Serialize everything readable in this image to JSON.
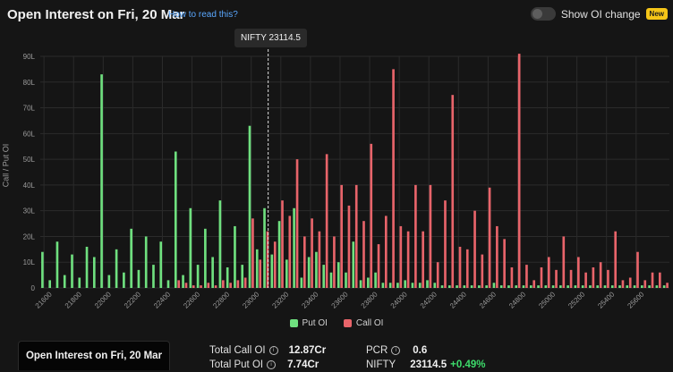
{
  "header": {
    "title": "Open Interest on Fri, 20 Mar",
    "how_to_read": "How to read this?",
    "toggle_label": "Show OI change",
    "new_badge": "New"
  },
  "spot_tooltip": "NIFTY 23114.5",
  "legend": {
    "put": "Put OI",
    "call": "Call OI"
  },
  "footer": {
    "button": "Open Interest on Fri, 20 Mar",
    "total_call_label": "Total Call OI",
    "total_call_value": "12.87Cr",
    "total_put_label": "Total Put OI",
    "total_put_value": "7.74Cr",
    "pcr_label": "PCR",
    "pcr_value": "0.6",
    "nifty_label": "NIFTY",
    "nifty_value": "23114.5",
    "nifty_change": "+0.49%"
  },
  "colors": {
    "put": "#6fe07f",
    "call": "#e8646a",
    "background": "#151515",
    "grid": "#2b2b2b"
  },
  "chart_data": {
    "type": "bar",
    "ylabel": "Call / Put OI",
    "ylim": [
      0,
      90
    ],
    "y_ticks": [
      "0",
      "10L",
      "20L",
      "30L",
      "40L",
      "50L",
      "60L",
      "70L",
      "80L",
      "90L"
    ],
    "x_ticks": [
      "21600",
      "21800",
      "22000",
      "22200",
      "22400",
      "22600",
      "22800",
      "23000",
      "23200",
      "23400",
      "23600",
      "23800",
      "24000",
      "24200",
      "24400",
      "24600",
      "24800",
      "25000",
      "25200",
      "25400",
      "25600"
    ],
    "spot": 23114.5,
    "strike_min": 21600,
    "strike_step": 50,
    "series": [
      {
        "name": "Put OI",
        "values": [
          14,
          3,
          18,
          5,
          13,
          4,
          16,
          12,
          83,
          5,
          15,
          6,
          23,
          7,
          20,
          9,
          18,
          3,
          53,
          5,
          31,
          9,
          23,
          12,
          34,
          8,
          24,
          9,
          63,
          15,
          31,
          13,
          26,
          11,
          31,
          4,
          12,
          14,
          9,
          6,
          10,
          6,
          18,
          3,
          4,
          6,
          2,
          2,
          2,
          3,
          2,
          2,
          3,
          2,
          1,
          1,
          1,
          1,
          1,
          1,
          1,
          2,
          1,
          1,
          1,
          1,
          1,
          1,
          1,
          1,
          1,
          1,
          1,
          1,
          1,
          1,
          1,
          1,
          1,
          1,
          1,
          1,
          1,
          1,
          1
        ]
      },
      {
        "name": "Call OI",
        "values": [
          0,
          0,
          0,
          0,
          0,
          0,
          0,
          0,
          0,
          0,
          0,
          0,
          0,
          0,
          0,
          0,
          0,
          0,
          3,
          2,
          1,
          1,
          2,
          1,
          3,
          2,
          3,
          4,
          27,
          11,
          22,
          18,
          34,
          28,
          50,
          20,
          27,
          22,
          52,
          20,
          40,
          32,
          40,
          26,
          56,
          17,
          28,
          85,
          24,
          22,
          40,
          22,
          40,
          10,
          34,
          75,
          16,
          15,
          30,
          13,
          39,
          24,
          19,
          8,
          91,
          9,
          3,
          8,
          12,
          7,
          20,
          7,
          12,
          6,
          8,
          10,
          7,
          22,
          3,
          4,
          14,
          3,
          6,
          6,
          2
        ]
      }
    ]
  }
}
